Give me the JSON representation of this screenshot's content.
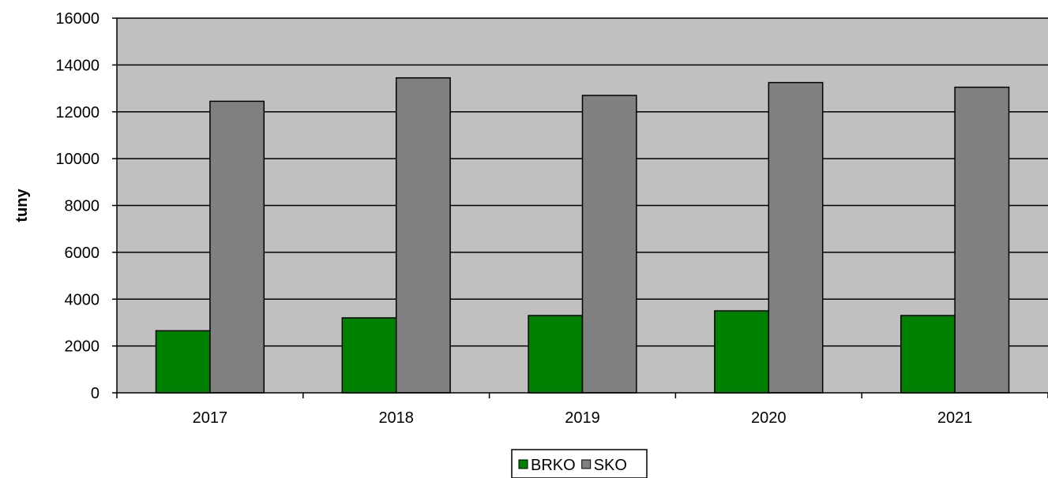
{
  "chart_data": {
    "type": "bar",
    "categories": [
      "2017",
      "2018",
      "2019",
      "2020",
      "2021"
    ],
    "series": [
      {
        "name": "BRKO",
        "values": [
          2650,
          3200,
          3300,
          3500,
          3300
        ],
        "color": "#008000"
      },
      {
        "name": "SKO",
        "values": [
          12450,
          13450,
          12700,
          13250,
          13050
        ],
        "color": "#808080"
      }
    ],
    "title": "",
    "xlabel": "",
    "ylabel": "tuny",
    "ylim": [
      0,
      16000
    ],
    "yticks": [
      0,
      2000,
      4000,
      6000,
      8000,
      10000,
      12000,
      14000,
      16000
    ],
    "plot_background": "#c0c0c0",
    "grid": true,
    "legend": "bottom-center"
  }
}
